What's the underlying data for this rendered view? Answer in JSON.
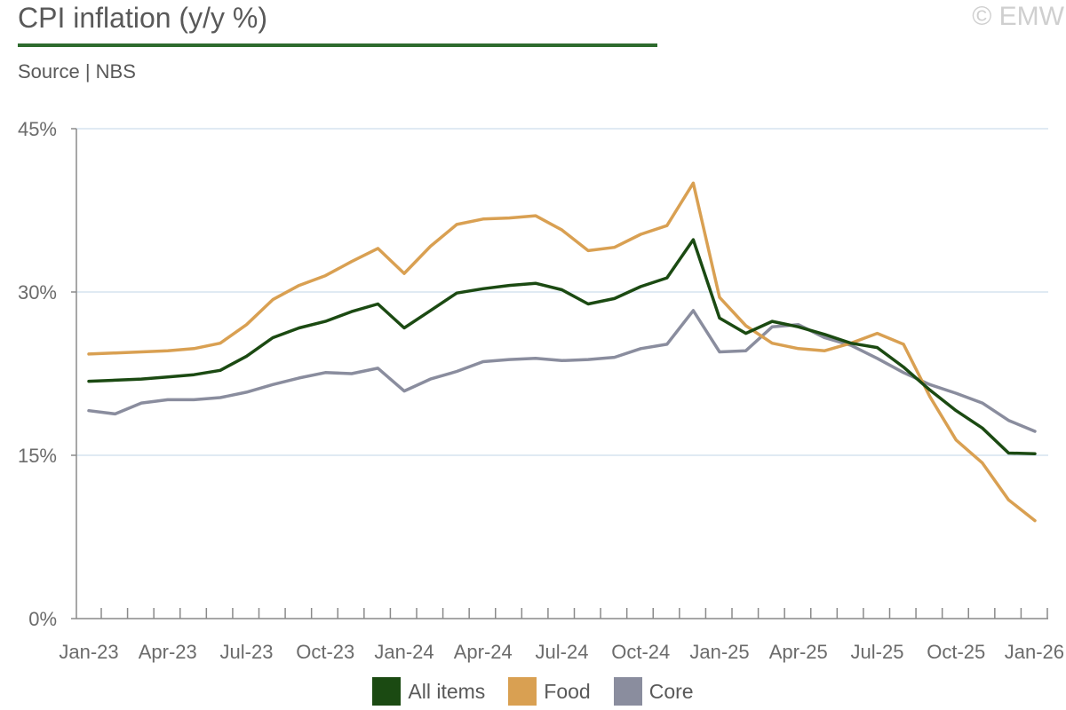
{
  "header": {
    "title": "CPI inflation (y/y %)",
    "source": "Source | NBS",
    "copyright": "© EMW"
  },
  "colors": {
    "all_items": "#1b4a12",
    "food": "#d9a052",
    "core": "#8a8d9e",
    "grid": "#d6e3ef",
    "axis": "#8a8a8a",
    "title_rule": "#2e6b2e"
  },
  "chart_data": {
    "type": "line",
    "title": "CPI inflation (y/y %)",
    "xlabel": "",
    "ylabel": "",
    "ylim": [
      0,
      45
    ],
    "yticks": [
      "0%",
      "15%",
      "30%",
      "45%"
    ],
    "ytick_values": [
      0,
      15,
      30,
      45
    ],
    "grid": true,
    "legend_position": "bottom",
    "x": [
      "Jan-23",
      "Feb-23",
      "Mar-23",
      "Apr-23",
      "May-23",
      "Jun-23",
      "Jul-23",
      "Aug-23",
      "Sep-23",
      "Oct-23",
      "Nov-23",
      "Dec-23",
      "Jan-24",
      "Feb-24",
      "Mar-24",
      "Apr-24",
      "May-24",
      "Jun-24",
      "Jul-24",
      "Aug-24",
      "Sep-24",
      "Oct-24",
      "Nov-24",
      "Dec-24",
      "Jan-25",
      "Feb-25",
      "Mar-25",
      "Apr-25",
      "May-25",
      "Jun-25",
      "Jul-25",
      "Aug-25",
      "Sep-25",
      "Oct-25",
      "Nov-25",
      "Dec-25",
      "Jan-26"
    ],
    "xtick_labels": [
      "Jan-23",
      "Apr-23",
      "Jul-23",
      "Oct-23",
      "Jan-24",
      "Apr-24",
      "Jul-24",
      "Oct-24",
      "Jan-25",
      "Apr-25",
      "Jul-25",
      "Oct-25",
      "Jan-26"
    ],
    "xtick_indices": [
      0,
      3,
      6,
      9,
      12,
      15,
      18,
      21,
      24,
      27,
      30,
      33,
      36
    ],
    "series": [
      {
        "name": "All items",
        "color_key": "all_items",
        "values": [
          21.8,
          21.9,
          22.0,
          22.2,
          22.4,
          22.8,
          24.1,
          25.8,
          26.7,
          27.3,
          28.2,
          28.9,
          26.7,
          28.3,
          29.9,
          30.3,
          30.6,
          30.8,
          30.2,
          28.9,
          29.4,
          30.5,
          31.3,
          34.8,
          27.6,
          26.2,
          27.3,
          26.8,
          26.1,
          25.3,
          24.9,
          23.1,
          21.0,
          19.1,
          17.5,
          15.2,
          15.15
        ]
      },
      {
        "name": "Food",
        "color_key": "food",
        "values": [
          24.3,
          24.4,
          24.5,
          24.6,
          24.8,
          25.3,
          27.0,
          29.3,
          30.6,
          31.5,
          32.8,
          34.0,
          31.7,
          34.2,
          36.2,
          36.7,
          36.8,
          37.0,
          35.7,
          33.8,
          34.1,
          35.3,
          36.1,
          40.0,
          29.5,
          26.9,
          25.3,
          24.8,
          24.6,
          25.3,
          26.2,
          25.2,
          20.4,
          16.4,
          14.3,
          10.9,
          9.0
        ]
      },
      {
        "name": "Core",
        "color_key": "core",
        "values": [
          19.1,
          18.8,
          19.8,
          20.1,
          20.1,
          20.3,
          20.8,
          21.5,
          22.1,
          22.6,
          22.5,
          23.0,
          20.9,
          22.0,
          22.7,
          23.6,
          23.8,
          23.9,
          23.7,
          23.8,
          24.0,
          24.8,
          25.2,
          28.3,
          24.5,
          24.6,
          26.8,
          27.0,
          25.8,
          25.1,
          23.9,
          22.6,
          21.5,
          20.7,
          19.8,
          18.2,
          17.2
        ]
      }
    ]
  }
}
